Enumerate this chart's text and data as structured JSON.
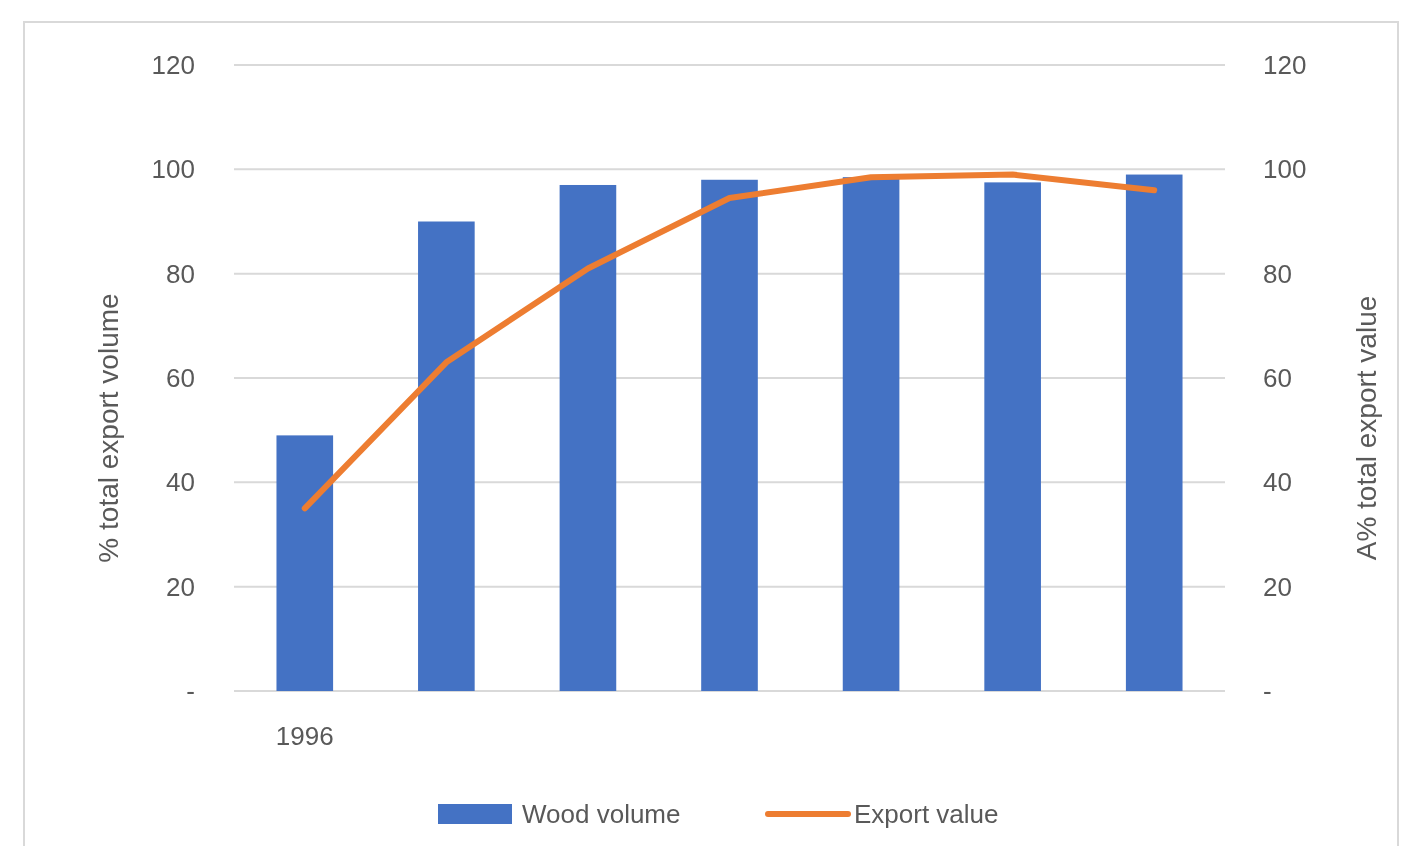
{
  "chart_data": {
    "type": "bar",
    "categories": [
      "1996",
      null,
      null,
      null,
      null,
      null,
      null
    ],
    "ylabel": "% total export volume",
    "y2label": "A% total export value",
    "ylim": [
      0,
      120
    ],
    "yticks": [
      {
        "value": 0,
        "label": "-"
      },
      20,
      40,
      60,
      80,
      100,
      120
    ],
    "y2lim": [
      0,
      120
    ],
    "y2ticks": [
      {
        "value": 0,
        "label": "-"
      },
      20,
      40,
      60,
      80,
      100,
      120
    ],
    "grid": "y",
    "legend": "bottom",
    "series": [
      {
        "name": "Wood volume",
        "color": "#4472c4",
        "values": [
          49,
          90,
          97,
          98,
          98.5,
          97.5,
          99
        ]
      },
      {
        "name": "Export value",
        "type": "line",
        "axis": "y2",
        "color": "#ed7d31",
        "values": [
          35,
          63,
          81,
          94.5,
          98.5,
          99,
          96
        ]
      }
    ]
  }
}
